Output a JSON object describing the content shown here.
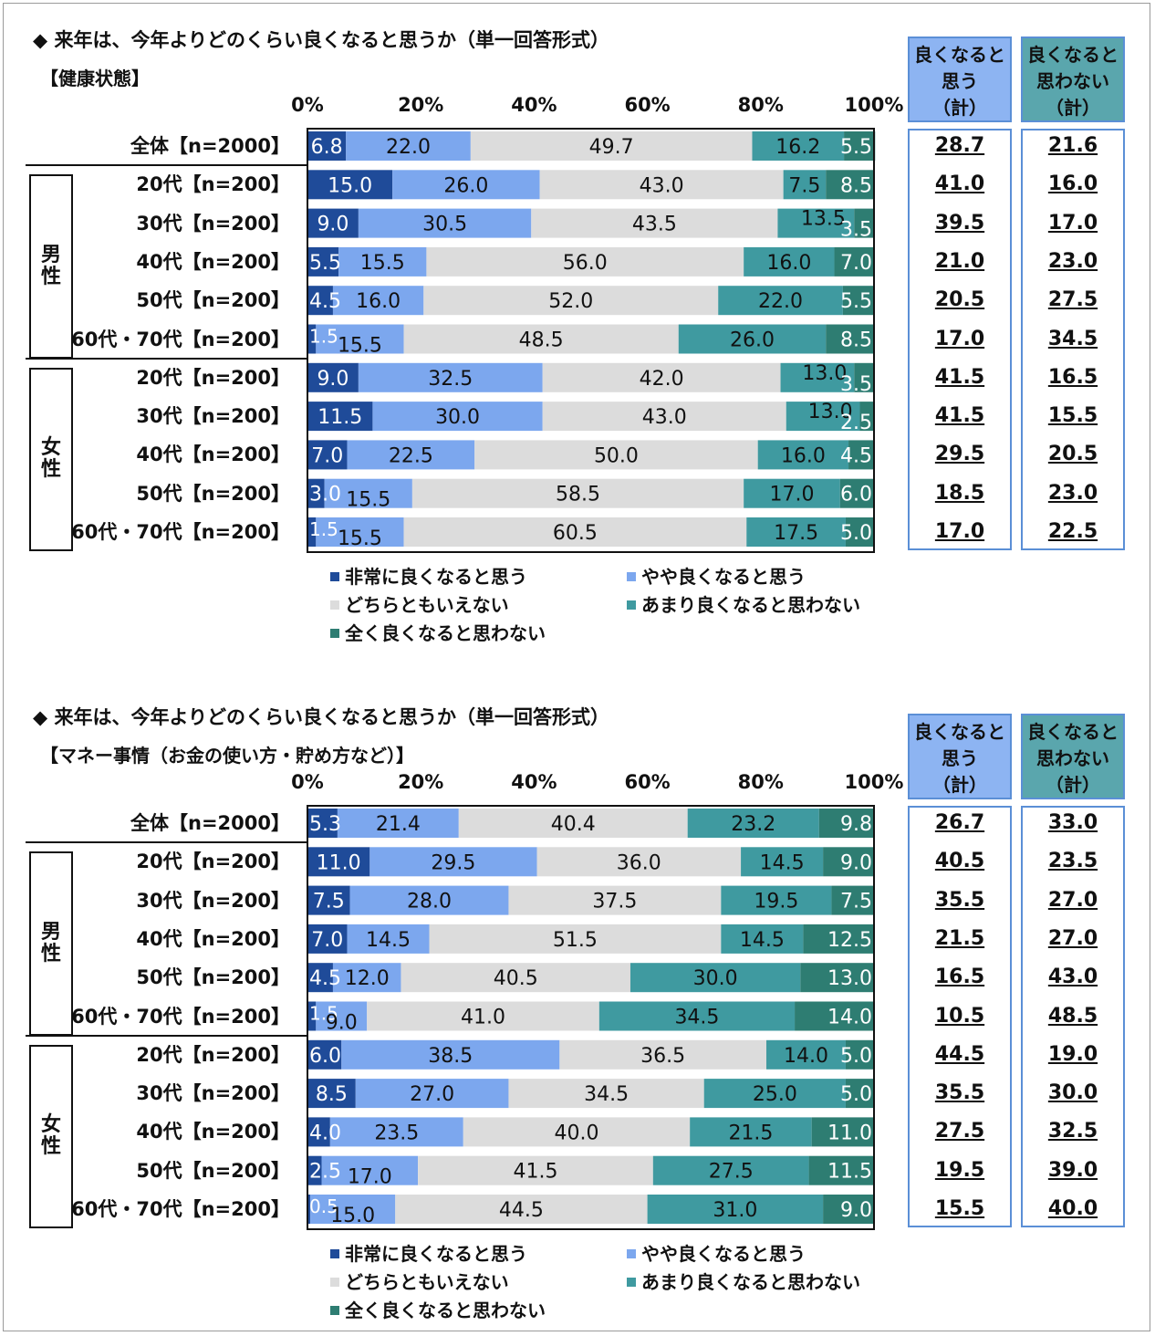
{
  "colors": {
    "very_good": "#1f4b99",
    "somewhat_good": "#7ca7ee",
    "neutral": "#dcdcdc",
    "not_much": "#3f9aa0",
    "not_at_all": "#2e7d72"
  },
  "legend": [
    "非常に良くなると思う",
    "やや良くなると思う",
    "どちらともいえない",
    "あまり良くなると思わない",
    "全く良くなると思わない"
  ],
  "sum_headers": {
    "good": [
      "良くなると",
      "思う",
      "（計）"
    ],
    "not_good": [
      "良くなると",
      "思わない",
      "（計）"
    ]
  },
  "gender_labels": {
    "male": [
      "男",
      "性"
    ],
    "female": [
      "女",
      "性"
    ]
  },
  "chart_data": [
    {
      "type": "bar",
      "stacked": true,
      "orientation": "horizontal",
      "title": "◆ 来年は、今年よりどのくらい良くなると思うか（単一回答形式）",
      "subtitle": "【健康状態】",
      "xlim": [
        0,
        100
      ],
      "xticks": [
        "0%",
        "20%",
        "40%",
        "60%",
        "80%",
        "100%"
      ],
      "categories": [
        "全体【n=2000】",
        "20代【n=200】",
        "30代【n=200】",
        "40代【n=200】",
        "50代【n=200】",
        "60代・70代【n=200】",
        "20代【n=200】",
        "30代【n=200】",
        "40代【n=200】",
        "50代【n=200】",
        "60代・70代【n=200】"
      ],
      "series": [
        {
          "name": "非常に良くなると思う",
          "values": [
            6.8,
            15.0,
            9.0,
            5.5,
            4.5,
            1.5,
            9.0,
            11.5,
            7.0,
            3.0,
            1.5
          ]
        },
        {
          "name": "やや良くなると思う",
          "values": [
            22.0,
            26.0,
            30.5,
            15.5,
            16.0,
            15.5,
            32.5,
            30.0,
            22.5,
            15.5,
            15.5
          ]
        },
        {
          "name": "どちらともいえない",
          "values": [
            49.7,
            43.0,
            43.5,
            56.0,
            52.0,
            48.5,
            42.0,
            43.0,
            50.0,
            58.5,
            60.5
          ]
        },
        {
          "name": "あまり良くなると思わない",
          "values": [
            16.2,
            7.5,
            13.5,
            16.0,
            22.0,
            26.0,
            13.0,
            13.0,
            16.0,
            17.0,
            17.5
          ]
        },
        {
          "name": "全く良くなると思わない",
          "values": [
            5.5,
            8.5,
            3.5,
            7.0,
            5.5,
            8.5,
            3.5,
            2.5,
            4.5,
            6.0,
            5.0
          ]
        }
      ],
      "good_total": [
        "28.7",
        "41.0",
        "39.5",
        "21.0",
        "20.5",
        "17.0",
        "41.5",
        "41.5",
        "29.5",
        "18.5",
        "17.0"
      ],
      "not_good_total": [
        "21.6",
        "16.0",
        "17.0",
        "23.0",
        "27.5",
        "34.5",
        "16.5",
        "15.5",
        "20.5",
        "23.0",
        "22.5"
      ],
      "labels": [
        [
          "6.8",
          "22.0",
          "49.7",
          "16.2",
          "5.5"
        ],
        [
          "15.0",
          "26.0",
          "43.0",
          "7.5",
          "8.5"
        ],
        [
          "9.0",
          "30.5",
          "43.5",
          "13.5",
          "3.5"
        ],
        [
          "5.5",
          "15.5",
          "56.0",
          "16.0",
          "7.0"
        ],
        [
          "4.5",
          "16.0",
          "52.0",
          "22.0",
          "5.5"
        ],
        [
          "1.5",
          "15.5",
          "48.5",
          "26.0",
          "8.5"
        ],
        [
          "9.0",
          "32.5",
          "42.0",
          "13.0",
          "3.5"
        ],
        [
          "11.5",
          "30.0",
          "43.0",
          "13.0",
          "2.5"
        ],
        [
          "7.0",
          "22.5",
          "50.0",
          "16.0",
          "4.5"
        ],
        [
          "3.0",
          "15.5",
          "58.5",
          "17.0",
          "6.0"
        ],
        [
          "1.5",
          "15.5",
          "60.5",
          "17.5",
          "5.0"
        ]
      ]
    },
    {
      "type": "bar",
      "stacked": true,
      "orientation": "horizontal",
      "title": "◆ 来年は、今年よりどのくらい良くなると思うか（単一回答形式）",
      "subtitle": "【マネー事情（お金の使い方・貯め方など）】",
      "xlim": [
        0,
        100
      ],
      "xticks": [
        "0%",
        "20%",
        "40%",
        "60%",
        "80%",
        "100%"
      ],
      "categories": [
        "全体【n=2000】",
        "20代【n=200】",
        "30代【n=200】",
        "40代【n=200】",
        "50代【n=200】",
        "60代・70代【n=200】",
        "20代【n=200】",
        "30代【n=200】",
        "40代【n=200】",
        "50代【n=200】",
        "60代・70代【n=200】"
      ],
      "series": [
        {
          "name": "非常に良くなると思う",
          "values": [
            5.3,
            11.0,
            7.5,
            7.0,
            4.5,
            1.5,
            6.0,
            8.5,
            4.0,
            2.5,
            0.5
          ]
        },
        {
          "name": "やや良くなると思う",
          "values": [
            21.4,
            29.5,
            28.0,
            14.5,
            12.0,
            9.0,
            38.5,
            27.0,
            23.5,
            17.0,
            15.0
          ]
        },
        {
          "name": "どちらともいえない",
          "values": [
            40.4,
            36.0,
            37.5,
            51.5,
            40.5,
            41.0,
            36.5,
            34.5,
            40.0,
            41.5,
            44.5
          ]
        },
        {
          "name": "あまり良くなると思わない",
          "values": [
            23.2,
            14.5,
            19.5,
            14.5,
            30.0,
            34.5,
            14.0,
            25.0,
            21.5,
            27.5,
            31.0
          ]
        },
        {
          "name": "全く良くなると思わない",
          "values": [
            9.8,
            9.0,
            7.5,
            12.5,
            13.0,
            14.0,
            5.0,
            5.0,
            11.0,
            11.5,
            9.0
          ]
        }
      ],
      "good_total": [
        "26.7",
        "40.5",
        "35.5",
        "21.5",
        "16.5",
        "10.5",
        "44.5",
        "35.5",
        "27.5",
        "19.5",
        "15.5"
      ],
      "not_good_total": [
        "33.0",
        "23.5",
        "27.0",
        "27.0",
        "43.0",
        "48.5",
        "19.0",
        "30.0",
        "32.5",
        "39.0",
        "40.0"
      ],
      "labels": [
        [
          "5.3",
          "21.4",
          "40.4",
          "23.2",
          "9.8"
        ],
        [
          "11.0",
          "29.5",
          "36.0",
          "14.5",
          "9.0"
        ],
        [
          "7.5",
          "28.0",
          "37.5",
          "19.5",
          "7.5"
        ],
        [
          "7.0",
          "14.5",
          "51.5",
          "14.5",
          "12.5"
        ],
        [
          "4.5",
          "12.0",
          "40.5",
          "30.0",
          "13.0"
        ],
        [
          "1.5",
          "9.0",
          "41.0",
          "34.5",
          "14.0"
        ],
        [
          "6.0",
          "38.5",
          "36.5",
          "14.0",
          "5.0"
        ],
        [
          "8.5",
          "27.0",
          "34.5",
          "25.0",
          "5.0"
        ],
        [
          "4.0",
          "23.5",
          "40.0",
          "21.5",
          "11.0"
        ],
        [
          "2.5",
          "17.0",
          "41.5",
          "27.5",
          "11.5"
        ],
        [
          "0.5",
          "15.0",
          "44.5",
          "31.0",
          "9.0"
        ]
      ]
    }
  ]
}
